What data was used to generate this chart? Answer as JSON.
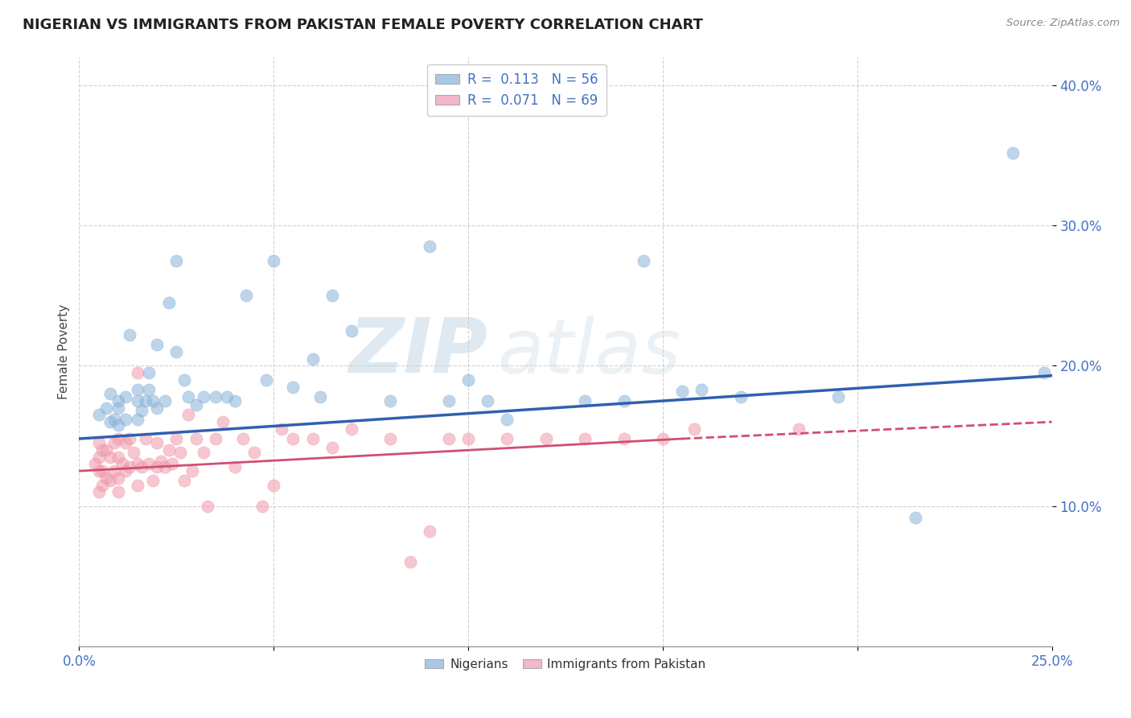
{
  "title": "NIGERIAN VS IMMIGRANTS FROM PAKISTAN FEMALE POVERTY CORRELATION CHART",
  "source": "Source: ZipAtlas.com",
  "ylabel": "Female Poverty",
  "watermark_zip": "ZIP",
  "watermark_atlas": "atlas",
  "xlim": [
    0.0,
    0.25
  ],
  "ylim": [
    0.0,
    0.42
  ],
  "yticks": [
    0.1,
    0.2,
    0.3,
    0.4
  ],
  "ytick_labels": [
    "10.0%",
    "20.0%",
    "30.0%",
    "40.0%"
  ],
  "legend_r1": "R =  0.113   N = 56",
  "legend_r2": "R =  0.071   N = 69",
  "bottom_legend_1": "Nigerians",
  "bottom_legend_2": "Immigrants from Pakistan",
  "line_blue": [
    [
      0.0,
      0.148
    ],
    [
      0.25,
      0.193
    ]
  ],
  "line_pink_solid": [
    [
      0.0,
      0.125
    ],
    [
      0.155,
      0.148
    ]
  ],
  "line_pink_dashed": [
    [
      0.155,
      0.148
    ],
    [
      0.25,
      0.16
    ]
  ],
  "blue_dot_color": "#8ab4d8",
  "pink_dot_color": "#f09aaa",
  "blue_line_color": "#3060b0",
  "pink_line_color": "#d05070",
  "blue_legend_color": "#a8c8e8",
  "pink_legend_color": "#f4b8c8",
  "text_blue": "#4472c4",
  "bg_color": "#ffffff",
  "grid_color": "#cccccc",
  "nigerians_x": [
    0.005,
    0.007,
    0.008,
    0.008,
    0.009,
    0.01,
    0.01,
    0.01,
    0.012,
    0.012,
    0.013,
    0.015,
    0.015,
    0.015,
    0.016,
    0.017,
    0.018,
    0.018,
    0.019,
    0.02,
    0.02,
    0.022,
    0.023,
    0.025,
    0.025,
    0.027,
    0.028,
    0.03,
    0.032,
    0.035,
    0.038,
    0.04,
    0.043,
    0.048,
    0.05,
    0.055,
    0.06,
    0.062,
    0.065,
    0.07,
    0.08,
    0.09,
    0.095,
    0.1,
    0.105,
    0.11,
    0.13,
    0.14,
    0.145,
    0.155,
    0.16,
    0.17,
    0.195,
    0.215,
    0.24,
    0.248
  ],
  "nigerians_y": [
    0.165,
    0.17,
    0.16,
    0.18,
    0.162,
    0.158,
    0.17,
    0.175,
    0.162,
    0.178,
    0.222,
    0.162,
    0.175,
    0.183,
    0.168,
    0.175,
    0.183,
    0.195,
    0.175,
    0.17,
    0.215,
    0.175,
    0.245,
    0.21,
    0.275,
    0.19,
    0.178,
    0.172,
    0.178,
    0.178,
    0.178,
    0.175,
    0.25,
    0.19,
    0.275,
    0.185,
    0.205,
    0.178,
    0.25,
    0.225,
    0.175,
    0.285,
    0.175,
    0.19,
    0.175,
    0.162,
    0.175,
    0.175,
    0.275,
    0.182,
    0.183,
    0.178,
    0.178,
    0.092,
    0.352,
    0.195
  ],
  "pakistan_x": [
    0.004,
    0.005,
    0.005,
    0.005,
    0.005,
    0.006,
    0.006,
    0.006,
    0.007,
    0.007,
    0.008,
    0.008,
    0.009,
    0.009,
    0.01,
    0.01,
    0.01,
    0.01,
    0.011,
    0.012,
    0.012,
    0.013,
    0.013,
    0.014,
    0.015,
    0.015,
    0.015,
    0.016,
    0.017,
    0.018,
    0.019,
    0.02,
    0.02,
    0.021,
    0.022,
    0.023,
    0.024,
    0.025,
    0.026,
    0.027,
    0.028,
    0.029,
    0.03,
    0.032,
    0.033,
    0.035,
    0.037,
    0.04,
    0.042,
    0.045,
    0.047,
    0.05,
    0.052,
    0.055,
    0.06,
    0.065,
    0.07,
    0.08,
    0.085,
    0.09,
    0.095,
    0.1,
    0.11,
    0.12,
    0.13,
    0.14,
    0.15,
    0.158,
    0.185
  ],
  "pakistan_y": [
    0.13,
    0.11,
    0.125,
    0.135,
    0.145,
    0.115,
    0.125,
    0.14,
    0.12,
    0.14,
    0.118,
    0.135,
    0.125,
    0.145,
    0.11,
    0.12,
    0.135,
    0.148,
    0.13,
    0.125,
    0.145,
    0.128,
    0.148,
    0.138,
    0.115,
    0.13,
    0.195,
    0.128,
    0.148,
    0.13,
    0.118,
    0.128,
    0.145,
    0.132,
    0.128,
    0.14,
    0.13,
    0.148,
    0.138,
    0.118,
    0.165,
    0.125,
    0.148,
    0.138,
    0.1,
    0.148,
    0.16,
    0.128,
    0.148,
    0.138,
    0.1,
    0.115,
    0.155,
    0.148,
    0.148,
    0.142,
    0.155,
    0.148,
    0.06,
    0.082,
    0.148,
    0.148,
    0.148,
    0.148,
    0.148,
    0.148,
    0.148,
    0.155,
    0.155
  ]
}
